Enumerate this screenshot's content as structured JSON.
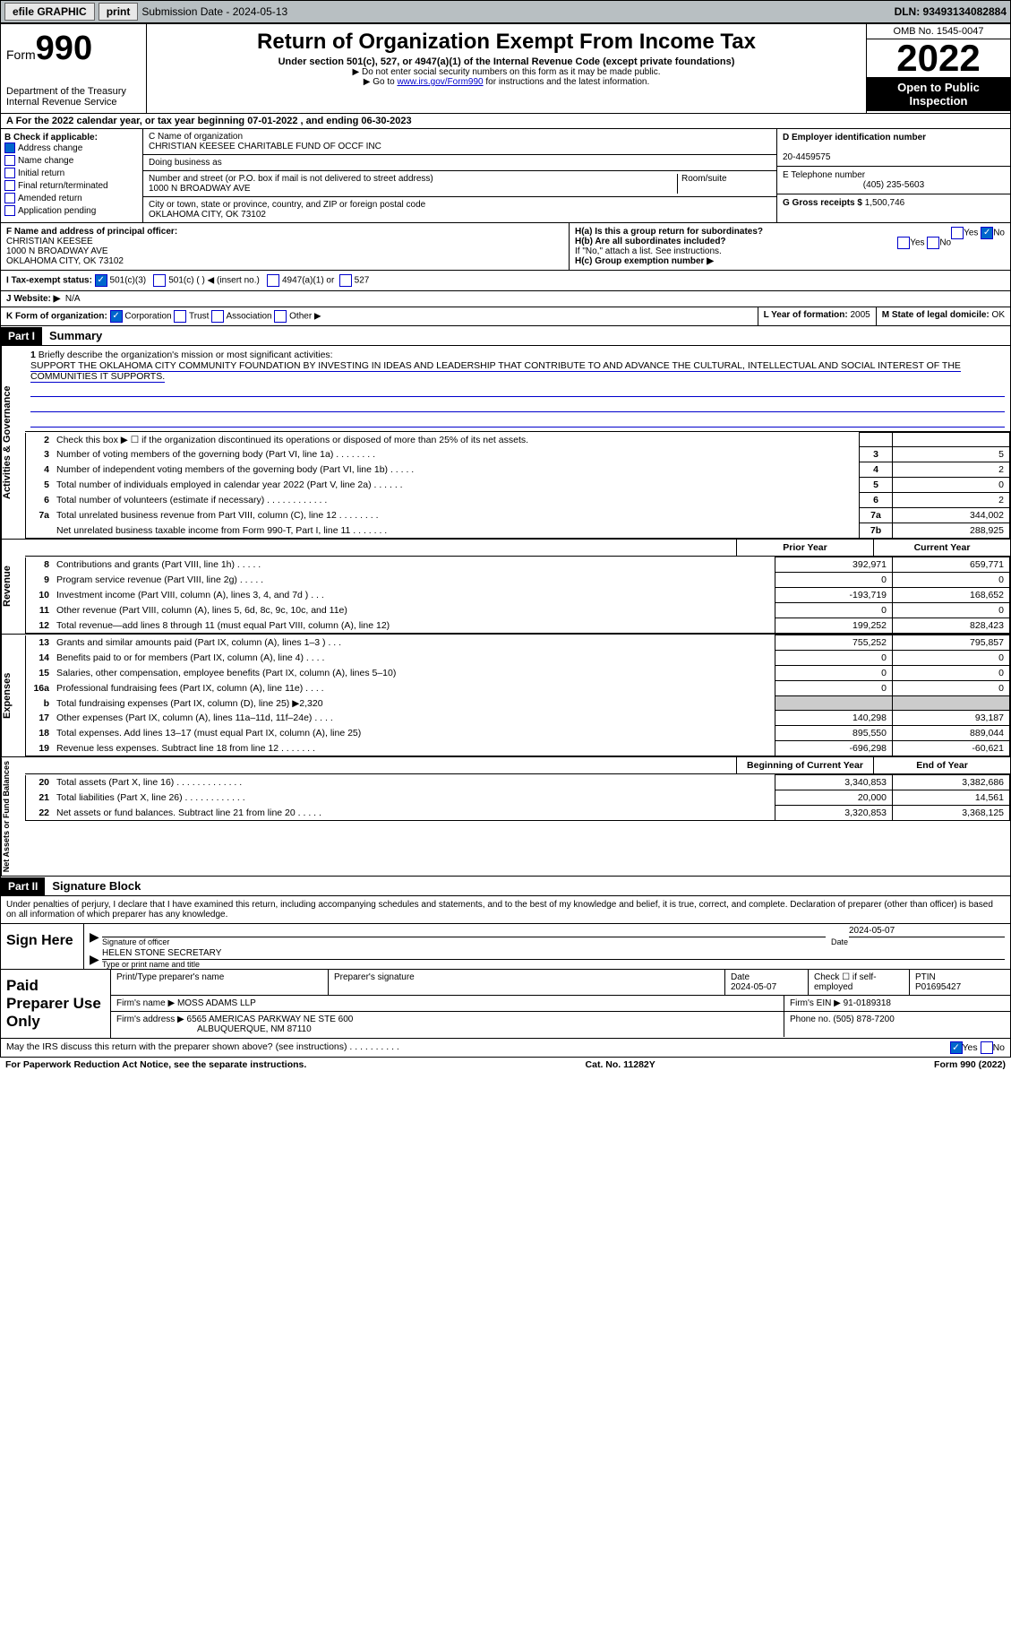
{
  "top": {
    "efile": "efile GRAPHIC",
    "print": "print",
    "sub": "Submission Date - 2024-05-13",
    "dln": "DLN: 93493134082884"
  },
  "hdr": {
    "form": "Form",
    "num": "990",
    "dept": "Department of the Treasury",
    "irs": "Internal Revenue Service",
    "title": "Return of Organization Exempt From Income Tax",
    "sub": "Under section 501(c), 527, or 4947(a)(1) of the Internal Revenue Code (except private foundations)",
    "note1": "▶ Do not enter social security numbers on this form as it may be made public.",
    "note2": "▶ Go to ",
    "link": "www.irs.gov/Form990",
    "note3": " for instructions and the latest information.",
    "omb": "OMB No. 1545-0047",
    "yr": "2022",
    "pub": "Open to Public Inspection"
  },
  "A": {
    "txt": "A For the 2022 calendar year, or tax year beginning 07-01-2022     , and ending 06-30-2023"
  },
  "B": {
    "hdr": "B Check if applicable:",
    "items": [
      "Address change",
      "Name change",
      "Initial return",
      "Final return/terminated",
      "Amended return",
      "Application pending"
    ],
    "checked": 0
  },
  "C": {
    "lbl": "C Name of organization",
    "name": "CHRISTIAN KEESEE CHARITABLE FUND OF OCCF INC",
    "dba": "Doing business as",
    "addr_lbl": "Number and street (or P.O. box if mail is not delivered to street address)",
    "addr": "1000 N BROADWAY AVE",
    "room": "Room/suite",
    "city_lbl": "City or town, state or province, country, and ZIP or foreign postal code",
    "city": "OKLAHOMA CITY, OK  73102"
  },
  "D": {
    "lbl": "D Employer identification number",
    "val": "20-4459575"
  },
  "E": {
    "lbl": "E Telephone number",
    "val": "(405) 235-5603"
  },
  "G": {
    "lbl": "G Gross receipts $",
    "val": "1,500,746"
  },
  "F": {
    "lbl": "F  Name and address of principal officer:",
    "name": "CHRISTIAN KEESEE",
    "addr": "1000 N BROADWAY AVE",
    "city": "OKLAHOMA CITY, OK  73102"
  },
  "H": {
    "a": "H(a)  Is this a group return for subordinates?",
    "b": "H(b)  Are all subordinates included?",
    "bnote": "If \"No,\" attach a list. See instructions.",
    "c": "H(c)  Group exemption number ▶"
  },
  "I": {
    "lbl": "I   Tax-exempt status:",
    "opts": [
      "501(c)(3)",
      "501(c) (  ) ◀ (insert no.)",
      "4947(a)(1) or",
      "527"
    ]
  },
  "J": {
    "lbl": "J   Website: ▶",
    "val": "N/A"
  },
  "K": {
    "lbl": "K Form of organization:",
    "opts": [
      "Corporation",
      "Trust",
      "Association",
      "Other ▶"
    ]
  },
  "L": {
    "lbl": "L Year of formation:",
    "val": "2005"
  },
  "M": {
    "lbl": "M State of legal domicile:",
    "val": "OK"
  },
  "part1": {
    "bar": "Part I",
    "title": "Summary"
  },
  "mission": {
    "num": "1",
    "lbl": "Briefly describe the organization's mission or most significant activities:",
    "txt": "SUPPORT THE OKLAHOMA CITY COMMUNITY FOUNDATION BY INVESTING IN IDEAS AND LEADERSHIP THAT CONTRIBUTE TO AND ADVANCE THE CULTURAL, INTELLECTUAL AND SOCIAL INTEREST OF THE COMMUNITIES IT SUPPORTS."
  },
  "lines": [
    {
      "n": "2",
      "t": "Check this box ▶ ☐  if the organization discontinued its operations or disposed of more than 25% of its net assets."
    },
    {
      "n": "3",
      "t": "Number of voting members of the governing body (Part VI, line 1a)   .     .     .     .     .     .     .     .",
      "b": "3",
      "v": "5"
    },
    {
      "n": "4",
      "t": "Number of independent voting members of the governing body (Part VI, line 1b)   .     .     .     .     .",
      "b": "4",
      "v": "2"
    },
    {
      "n": "5",
      "t": "Total number of individuals employed in calendar year 2022 (Part V, line 2a)   .     .     .     .     .     .",
      "b": "5",
      "v": "0"
    },
    {
      "n": "6",
      "t": "Total number of volunteers (estimate if necessary)     .     .     .     .     .     .     .     .     .     .     .     .",
      "b": "6",
      "v": "2"
    },
    {
      "n": "7a",
      "t": "Total unrelated business revenue from Part VIII, column (C), line 12    .     .     .     .     .     .     .     .",
      "b": "7a",
      "v": "344,002"
    },
    {
      "n": "",
      "t": "Net unrelated business taxable income from Form 990-T, Part I, line 11   .     .     .     .     .     .     .",
      "b": "7b",
      "v": "288,925"
    }
  ],
  "cols": {
    "py": "Prior Year",
    "cy": "Current Year"
  },
  "rev": [
    {
      "n": "8",
      "t": "Contributions and grants (Part VIII, line 1h)    .     .     .     .     .",
      "p": "392,971",
      "c": "659,771"
    },
    {
      "n": "9",
      "t": "Program service revenue (Part VIII, line 2g)    .     .     .     .     .",
      "p": "0",
      "c": "0"
    },
    {
      "n": "10",
      "t": "Investment income (Part VIII, column (A), lines 3, 4, and 7d )    .     .     .",
      "p": "-193,719",
      "c": "168,652"
    },
    {
      "n": "11",
      "t": "Other revenue (Part VIII, column (A), lines 5, 6d, 8c, 9c, 10c, and 11e)",
      "p": "0",
      "c": "0"
    },
    {
      "n": "12",
      "t": "Total revenue—add lines 8 through 11 (must equal Part VIII, column (A), line 12)",
      "p": "199,252",
      "c": "828,423"
    }
  ],
  "exp": [
    {
      "n": "13",
      "t": "Grants and similar amounts paid (Part IX, column (A), lines 1–3 )   .     .     .",
      "p": "755,252",
      "c": "795,857"
    },
    {
      "n": "14",
      "t": "Benefits paid to or for members (Part IX, column (A), line 4)   .     .     .     .",
      "p": "0",
      "c": "0"
    },
    {
      "n": "15",
      "t": "Salaries, other compensation, employee benefits (Part IX, column (A), lines 5–10)",
      "p": "0",
      "c": "0"
    },
    {
      "n": "16a",
      "t": "Professional fundraising fees (Part IX, column (A), line 11e)    .     .     .     .",
      "p": "0",
      "c": "0"
    },
    {
      "n": "b",
      "t": "Total fundraising expenses (Part IX, column (D), line 25) ▶2,320",
      "p": "",
      "c": "",
      "gray": true
    },
    {
      "n": "17",
      "t": "Other expenses (Part IX, column (A), lines 11a–11d, 11f–24e)    .     .     .     .",
      "p": "140,298",
      "c": "93,187"
    },
    {
      "n": "18",
      "t": "Total expenses. Add lines 13–17 (must equal Part IX, column (A), line 25)",
      "p": "895,550",
      "c": "889,044"
    },
    {
      "n": "19",
      "t": "Revenue less expenses. Subtract line 18 from line 12  .     .     .     .     .     .     .",
      "p": "-696,298",
      "c": "-60,621"
    }
  ],
  "cols2": {
    "b": "Beginning of Current Year",
    "e": "End of Year"
  },
  "net": [
    {
      "n": "20",
      "t": "Total assets (Part X, line 16)  .     .     .     .     .     .     .     .     .     .     .     .     .",
      "p": "3,340,853",
      "c": "3,382,686"
    },
    {
      "n": "21",
      "t": "Total liabilities (Part X, line 26)    .     .     .     .     .     .     .     .     .     .     .     .",
      "p": "20,000",
      "c": "14,561"
    },
    {
      "n": "22",
      "t": "Net assets or fund balances. Subtract line 21 from line 20   .     .     .     .     .",
      "p": "3,320,853",
      "c": "3,368,125"
    }
  ],
  "side": {
    "gov": "Activities & Governance",
    "rev": "Revenue",
    "exp": "Expenses",
    "net": "Net Assets or Fund Balances"
  },
  "part2": {
    "bar": "Part II",
    "title": "Signature Block"
  },
  "decl": "Under penalties of perjury, I declare that I have examined this return, including accompanying schedules and statements, and to the best of my knowledge and belief, it is true, correct, and complete. Declaration of preparer (other than officer) is based on all information of which preparer has any knowledge.",
  "sign": {
    "here": "Sign Here",
    "sig": "Signature of officer",
    "date": "2024-05-07",
    "name": "HELEN STONE SECRETARY",
    "type": "Type or print name and title"
  },
  "prep": {
    "lbl": "Paid Preparer Use Only",
    "h1": "Print/Type preparer's name",
    "h2": "Preparer's signature",
    "h3": "Date",
    "h3v": "2024-05-07",
    "h4": "Check ☐ if self-employed",
    "h5": "PTIN",
    "h5v": "P01695427",
    "firm": "Firm's name    ▶",
    "firmv": "MOSS ADAMS LLP",
    "ein": "Firm's EIN ▶",
    "einv": "91-0189318",
    "addr": "Firm's address ▶",
    "addrv": "6565 AMERICAS PARKWAY NE STE 600",
    "city": "ALBUQUERQUE, NM  87110",
    "ph": "Phone no.",
    "phv": "(505) 878-7200"
  },
  "discuss": "May the IRS discuss this return with the preparer shown above? (see instructions)    .     .     .     .     .     .     .     .     .     .",
  "foot": {
    "l": "For Paperwork Reduction Act Notice, see the separate instructions.",
    "c": "Cat. No. 11282Y",
    "r": "Form 990 (2022)"
  }
}
